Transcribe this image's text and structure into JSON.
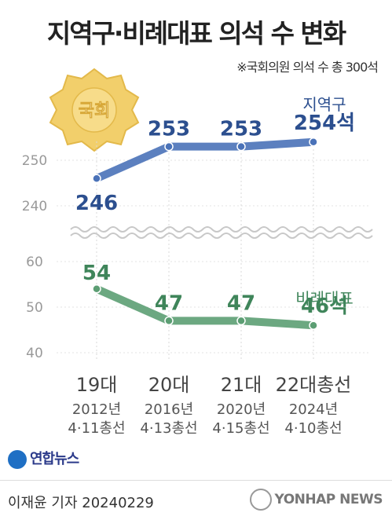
{
  "header": {
    "title": "지역구·비례대표 의석 수 변화",
    "note": "※국회의원 의석 수 총 300석"
  },
  "emblem": {
    "label": "국회"
  },
  "chart_data": {
    "type": "line",
    "categories": [
      "19대",
      "20대",
      "21대",
      "22대총선"
    ],
    "category_dates": [
      "2012년",
      "2016년",
      "2020년",
      "2024년"
    ],
    "category_days": [
      "4·11총선",
      "4·13총선",
      "4·15총선",
      "4·10총선"
    ],
    "axis_break": true,
    "upper_panel": {
      "yticks": [
        250,
        240
      ]
    },
    "lower_panel": {
      "yticks": [
        60,
        50,
        40
      ]
    },
    "series": [
      {
        "name": "지역구",
        "color": "#4a72b8",
        "values": [
          246,
          253,
          253,
          254
        ],
        "value_labels": [
          "246",
          "253",
          "253",
          "254석"
        ]
      },
      {
        "name": "비례대표",
        "color": "#5c9e73",
        "values": [
          54,
          47,
          47,
          46
        ],
        "value_labels": [
          "54",
          "47",
          "47",
          "46석"
        ]
      }
    ]
  },
  "footer": {
    "brand": "연합뉴스",
    "byline": "이재윤 기자",
    "date": "20240229",
    "credit": "YONHAP NEWS"
  }
}
